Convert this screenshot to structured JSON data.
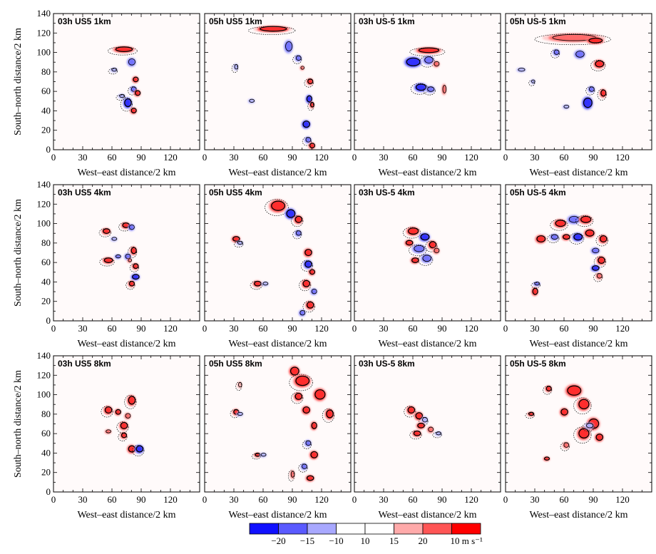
{
  "chart_data": {
    "type": "heatmap",
    "xlabel": "West–east distance/2 km",
    "ylabel": "South–north distance/2 km",
    "xlim": [
      0,
      150
    ],
    "ylim": [
      0,
      140
    ],
    "xticks": [
      0,
      30,
      60,
      90,
      120
    ],
    "yticks": [
      0,
      20,
      40,
      60,
      80,
      100,
      120,
      140
    ],
    "columns": [
      "03h US5",
      "05h US5",
      "03h US-5",
      "05h US-5"
    ],
    "rows": [
      "1km",
      "4km",
      "8km"
    ],
    "panels": [
      {
        "label": "03h US5 1km",
        "row": 0,
        "col": 0
      },
      {
        "label": "05h US5 1km",
        "row": 0,
        "col": 1
      },
      {
        "label": "03h US-5 1km",
        "row": 0,
        "col": 2
      },
      {
        "label": "05h US-5 1km",
        "row": 0,
        "col": 3
      },
      {
        "label": "03h US5 4km",
        "row": 1,
        "col": 0
      },
      {
        "label": "05h US5 4km",
        "row": 1,
        "col": 1
      },
      {
        "label": "03h US-5 4km",
        "row": 1,
        "col": 2
      },
      {
        "label": "05h US-5 4km",
        "row": 1,
        "col": 3
      },
      {
        "label": "03h US5 8km",
        "row": 2,
        "col": 0
      },
      {
        "label": "05h US5 8km",
        "row": 2,
        "col": 1
      },
      {
        "label": "03h US-5 8km",
        "row": 2,
        "col": 2
      },
      {
        "label": "05h US-5 8km",
        "row": 2,
        "col": 3
      }
    ],
    "colorbar": {
      "colors": [
        "#1010ff",
        "#5a5aff",
        "#a8a8ff",
        "#ffffff",
        "#ffffff",
        "#ffaaaa",
        "#ff5555",
        "#ff0000"
      ],
      "labels": [
        "−20",
        "−15",
        "−10",
        "10",
        "15",
        "20",
        "10 m s⁻¹"
      ]
    },
    "features": [
      [
        {
          "x": 72,
          "y": 103,
          "c": 3,
          "rx": 10,
          "ry": 3
        },
        {
          "x": 80,
          "y": 90,
          "c": -2,
          "rx": 4,
          "ry": 4
        },
        {
          "x": 62,
          "y": 82,
          "c": -1,
          "rx": 3,
          "ry": 2
        },
        {
          "x": 84,
          "y": 72,
          "c": 3,
          "rx": 3,
          "ry": 3
        },
        {
          "x": 82,
          "y": 62,
          "c": -2,
          "rx": 3,
          "ry": 3
        },
        {
          "x": 86,
          "y": 58,
          "c": 3,
          "rx": 3,
          "ry": 3
        },
        {
          "x": 76,
          "y": 48,
          "c": -3,
          "rx": 4,
          "ry": 5
        },
        {
          "x": 82,
          "y": 40,
          "c": 3,
          "rx": 3,
          "ry": 3
        },
        {
          "x": 70,
          "y": 55,
          "c": -1,
          "rx": 3,
          "ry": 2
        }
      ],
      [
        {
          "x": 70,
          "y": 124,
          "c": 3,
          "rx": 16,
          "ry": 3
        },
        {
          "x": 86,
          "y": 106,
          "c": -2,
          "rx": 4,
          "ry": 6
        },
        {
          "x": 32,
          "y": 85,
          "c": -1,
          "rx": 2,
          "ry": 3
        },
        {
          "x": 48,
          "y": 50,
          "c": -1,
          "rx": 3,
          "ry": 2
        },
        {
          "x": 108,
          "y": 70,
          "c": 3,
          "rx": 3,
          "ry": 3
        },
        {
          "x": 107,
          "y": 52,
          "c": -3,
          "rx": 3,
          "ry": 4
        },
        {
          "x": 110,
          "y": 46,
          "c": 3,
          "rx": 2,
          "ry": 3
        },
        {
          "x": 104,
          "y": 26,
          "c": -3,
          "rx": 4,
          "ry": 4
        },
        {
          "x": 106,
          "y": 10,
          "c": -2,
          "rx": 3,
          "ry": 3
        },
        {
          "x": 110,
          "y": 4,
          "c": 3,
          "rx": 3,
          "ry": 3
        },
        {
          "x": 96,
          "y": 94,
          "c": -2,
          "rx": 3,
          "ry": 3
        },
        {
          "x": 100,
          "y": 84,
          "c": 2,
          "rx": 2,
          "ry": 2
        }
      ],
      [
        {
          "x": 76,
          "y": 102,
          "c": 3,
          "rx": 12,
          "ry": 3
        },
        {
          "x": 60,
          "y": 90,
          "c": -3,
          "rx": 8,
          "ry": 5
        },
        {
          "x": 76,
          "y": 92,
          "c": -2,
          "rx": 5,
          "ry": 4
        },
        {
          "x": 84,
          "y": 88,
          "c": 2,
          "rx": 3,
          "ry": 3
        },
        {
          "x": 68,
          "y": 64,
          "c": -3,
          "rx": 6,
          "ry": 4
        },
        {
          "x": 92,
          "y": 62,
          "c": 2,
          "rx": 2,
          "ry": 5
        },
        {
          "x": 78,
          "y": 62,
          "c": -2,
          "rx": 4,
          "ry": 3
        }
      ],
      [
        {
          "x": 70,
          "y": 115,
          "c": 2,
          "rx": 26,
          "ry": 4
        },
        {
          "x": 92,
          "y": 112,
          "c": 3,
          "rx": 8,
          "ry": 3
        },
        {
          "x": 52,
          "y": 100,
          "c": -2,
          "rx": 3,
          "ry": 3
        },
        {
          "x": 76,
          "y": 98,
          "c": -2,
          "rx": 5,
          "ry": 4
        },
        {
          "x": 96,
          "y": 88,
          "c": 3,
          "rx": 5,
          "ry": 4
        },
        {
          "x": 16,
          "y": 82,
          "c": -1,
          "rx": 4,
          "ry": 2
        },
        {
          "x": 88,
          "y": 62,
          "c": -2,
          "rx": 3,
          "ry": 3
        },
        {
          "x": 84,
          "y": 48,
          "c": -3,
          "rx": 5,
          "ry": 6
        },
        {
          "x": 100,
          "y": 58,
          "c": 3,
          "rx": 3,
          "ry": 4
        },
        {
          "x": 62,
          "y": 44,
          "c": -1,
          "rx": 3,
          "ry": 2
        },
        {
          "x": 28,
          "y": 70,
          "c": -1,
          "rx": 2,
          "ry": 2
        }
      ],
      [
        {
          "x": 54,
          "y": 92,
          "c": 3,
          "rx": 4,
          "ry": 3
        },
        {
          "x": 62,
          "y": 84,
          "c": -1,
          "rx": 3,
          "ry": 2
        },
        {
          "x": 74,
          "y": 98,
          "c": 3,
          "rx": 4,
          "ry": 3
        },
        {
          "x": 80,
          "y": 96,
          "c": -2,
          "rx": 3,
          "ry": 3
        },
        {
          "x": 82,
          "y": 72,
          "c": 3,
          "rx": 3,
          "ry": 4
        },
        {
          "x": 76,
          "y": 66,
          "c": -2,
          "rx": 3,
          "ry": 3
        },
        {
          "x": 56,
          "y": 62,
          "c": 3,
          "rx": 5,
          "ry": 3
        },
        {
          "x": 66,
          "y": 66,
          "c": -2,
          "rx": 3,
          "ry": 2
        },
        {
          "x": 84,
          "y": 56,
          "c": 3,
          "rx": 3,
          "ry": 3
        },
        {
          "x": 84,
          "y": 45,
          "c": -3,
          "rx": 4,
          "ry": 3
        },
        {
          "x": 80,
          "y": 38,
          "c": 3,
          "rx": 3,
          "ry": 3
        },
        {
          "x": 78,
          "y": 62,
          "c": 2,
          "rx": 2,
          "ry": 2
        }
      ],
      [
        {
          "x": 75,
          "y": 118,
          "c": 3,
          "rx": 8,
          "ry": 6
        },
        {
          "x": 88,
          "y": 110,
          "c": -3,
          "rx": 5,
          "ry": 5
        },
        {
          "x": 96,
          "y": 104,
          "c": 3,
          "rx": 4,
          "ry": 4
        },
        {
          "x": 32,
          "y": 84,
          "c": 3,
          "rx": 4,
          "ry": 3
        },
        {
          "x": 36,
          "y": 80,
          "c": -1,
          "rx": 3,
          "ry": 2
        },
        {
          "x": 106,
          "y": 70,
          "c": 3,
          "rx": 4,
          "ry": 4
        },
        {
          "x": 106,
          "y": 58,
          "c": -3,
          "rx": 4,
          "ry": 4
        },
        {
          "x": 110,
          "y": 50,
          "c": 3,
          "rx": 3,
          "ry": 3
        },
        {
          "x": 104,
          "y": 38,
          "c": 3,
          "rx": 4,
          "ry": 4
        },
        {
          "x": 112,
          "y": 30,
          "c": -2,
          "rx": 3,
          "ry": 3
        },
        {
          "x": 108,
          "y": 16,
          "c": 3,
          "rx": 4,
          "ry": 4
        },
        {
          "x": 100,
          "y": 8,
          "c": -2,
          "rx": 3,
          "ry": 3
        },
        {
          "x": 54,
          "y": 38,
          "c": 3,
          "rx": 4,
          "ry": 3
        },
        {
          "x": 62,
          "y": 38,
          "c": -1,
          "rx": 3,
          "ry": 2
        },
        {
          "x": 96,
          "y": 90,
          "c": -2,
          "rx": 3,
          "ry": 3
        }
      ],
      [
        {
          "x": 60,
          "y": 92,
          "c": 3,
          "rx": 6,
          "ry": 4
        },
        {
          "x": 72,
          "y": 86,
          "c": -3,
          "rx": 5,
          "ry": 4
        },
        {
          "x": 80,
          "y": 78,
          "c": 3,
          "rx": 4,
          "ry": 4
        },
        {
          "x": 56,
          "y": 80,
          "c": 3,
          "rx": 4,
          "ry": 3
        },
        {
          "x": 66,
          "y": 74,
          "c": -2,
          "rx": 6,
          "ry": 4
        },
        {
          "x": 62,
          "y": 62,
          "c": 3,
          "rx": 4,
          "ry": 3
        },
        {
          "x": 74,
          "y": 64,
          "c": -2,
          "rx": 5,
          "ry": 4
        },
        {
          "x": 84,
          "y": 72,
          "c": 2,
          "rx": 3,
          "ry": 3
        }
      ],
      [
        {
          "x": 56,
          "y": 100,
          "c": 3,
          "rx": 6,
          "ry": 4
        },
        {
          "x": 70,
          "y": 104,
          "c": -2,
          "rx": 6,
          "ry": 4
        },
        {
          "x": 82,
          "y": 104,
          "c": 3,
          "rx": 6,
          "ry": 4
        },
        {
          "x": 36,
          "y": 84,
          "c": 3,
          "rx": 5,
          "ry": 4
        },
        {
          "x": 50,
          "y": 86,
          "c": -2,
          "rx": 4,
          "ry": 3
        },
        {
          "x": 62,
          "y": 86,
          "c": 3,
          "rx": 4,
          "ry": 3
        },
        {
          "x": 74,
          "y": 86,
          "c": -3,
          "rx": 5,
          "ry": 4
        },
        {
          "x": 86,
          "y": 90,
          "c": 3,
          "rx": 5,
          "ry": 4
        },
        {
          "x": 100,
          "y": 84,
          "c": 3,
          "rx": 4,
          "ry": 4
        },
        {
          "x": 92,
          "y": 72,
          "c": -2,
          "rx": 4,
          "ry": 3
        },
        {
          "x": 98,
          "y": 62,
          "c": 3,
          "rx": 4,
          "ry": 4
        },
        {
          "x": 92,
          "y": 54,
          "c": -3,
          "rx": 4,
          "ry": 3
        },
        {
          "x": 96,
          "y": 46,
          "c": 2,
          "rx": 3,
          "ry": 3
        },
        {
          "x": 30,
          "y": 30,
          "c": 3,
          "rx": 3,
          "ry": 4
        },
        {
          "x": 32,
          "y": 38,
          "c": -2,
          "rx": 3,
          "ry": 2
        }
      ],
      [
        {
          "x": 56,
          "y": 84,
          "c": 3,
          "rx": 4,
          "ry": 4
        },
        {
          "x": 66,
          "y": 82,
          "c": 3,
          "rx": 3,
          "ry": 3
        },
        {
          "x": 80,
          "y": 94,
          "c": 3,
          "rx": 4,
          "ry": 5
        },
        {
          "x": 76,
          "y": 78,
          "c": 2,
          "rx": 3,
          "ry": 3
        },
        {
          "x": 72,
          "y": 68,
          "c": 3,
          "rx": 4,
          "ry": 4
        },
        {
          "x": 56,
          "y": 62,
          "c": 2,
          "rx": 3,
          "ry": 2
        },
        {
          "x": 72,
          "y": 58,
          "c": 3,
          "rx": 3,
          "ry": 3
        },
        {
          "x": 80,
          "y": 44,
          "c": 3,
          "rx": 4,
          "ry": 4
        },
        {
          "x": 88,
          "y": 44,
          "c": -3,
          "rx": 4,
          "ry": 4
        }
      ],
      [
        {
          "x": 36,
          "y": 110,
          "c": 1,
          "rx": 2,
          "ry": 3
        },
        {
          "x": 92,
          "y": 124,
          "c": 3,
          "rx": 5,
          "ry": 5
        },
        {
          "x": 100,
          "y": 114,
          "c": 3,
          "rx": 8,
          "ry": 6
        },
        {
          "x": 118,
          "y": 100,
          "c": 3,
          "rx": 6,
          "ry": 6
        },
        {
          "x": 96,
          "y": 98,
          "c": 3,
          "rx": 4,
          "ry": 4
        },
        {
          "x": 104,
          "y": 84,
          "c": 3,
          "rx": 4,
          "ry": 4
        },
        {
          "x": 128,
          "y": 80,
          "c": 3,
          "rx": 4,
          "ry": 5
        },
        {
          "x": 112,
          "y": 68,
          "c": 3,
          "rx": 3,
          "ry": 4
        },
        {
          "x": 106,
          "y": 50,
          "c": -2,
          "rx": 3,
          "ry": 3
        },
        {
          "x": 112,
          "y": 38,
          "c": 3,
          "rx": 4,
          "ry": 4
        },
        {
          "x": 102,
          "y": 26,
          "c": -2,
          "rx": 3,
          "ry": 3
        },
        {
          "x": 108,
          "y": 14,
          "c": 3,
          "rx": 4,
          "ry": 3
        },
        {
          "x": 32,
          "y": 82,
          "c": 3,
          "rx": 3,
          "ry": 3
        },
        {
          "x": 36,
          "y": 80,
          "c": -1,
          "rx": 3,
          "ry": 2
        },
        {
          "x": 54,
          "y": 38,
          "c": 3,
          "rx": 3,
          "ry": 2
        },
        {
          "x": 60,
          "y": 38,
          "c": -1,
          "rx": 3,
          "ry": 2
        },
        {
          "x": 90,
          "y": 18,
          "c": 2,
          "rx": 2,
          "ry": 4
        }
      ],
      [
        {
          "x": 58,
          "y": 84,
          "c": 3,
          "rx": 4,
          "ry": 4
        },
        {
          "x": 66,
          "y": 78,
          "c": 3,
          "rx": 4,
          "ry": 4
        },
        {
          "x": 72,
          "y": 74,
          "c": -1,
          "rx": 3,
          "ry": 3
        },
        {
          "x": 68,
          "y": 68,
          "c": 3,
          "rx": 4,
          "ry": 3
        },
        {
          "x": 64,
          "y": 60,
          "c": 3,
          "rx": 4,
          "ry": 3
        },
        {
          "x": 78,
          "y": 64,
          "c": 2,
          "rx": 3,
          "ry": 3
        },
        {
          "x": 86,
          "y": 60,
          "c": -1,
          "rx": 3,
          "ry": 2
        }
      ],
      [
        {
          "x": 44,
          "y": 106,
          "c": 3,
          "rx": 3,
          "ry": 3
        },
        {
          "x": 70,
          "y": 104,
          "c": 3,
          "rx": 8,
          "ry": 6
        },
        {
          "x": 80,
          "y": 90,
          "c": 3,
          "rx": 6,
          "ry": 6
        },
        {
          "x": 60,
          "y": 82,
          "c": 3,
          "rx": 4,
          "ry": 4
        },
        {
          "x": 26,
          "y": 80,
          "c": 3,
          "rx": 3,
          "ry": 2
        },
        {
          "x": 90,
          "y": 70,
          "c": 3,
          "rx": 6,
          "ry": 6
        },
        {
          "x": 80,
          "y": 60,
          "c": 3,
          "rx": 6,
          "ry": 6
        },
        {
          "x": 96,
          "y": 56,
          "c": 3,
          "rx": 4,
          "ry": 4
        },
        {
          "x": 86,
          "y": 68,
          "c": -1,
          "rx": 4,
          "ry": 3
        },
        {
          "x": 42,
          "y": 34,
          "c": 3,
          "rx": 3,
          "ry": 2
        },
        {
          "x": 62,
          "y": 48,
          "c": 2,
          "rx": 3,
          "ry": 3
        }
      ]
    ]
  }
}
